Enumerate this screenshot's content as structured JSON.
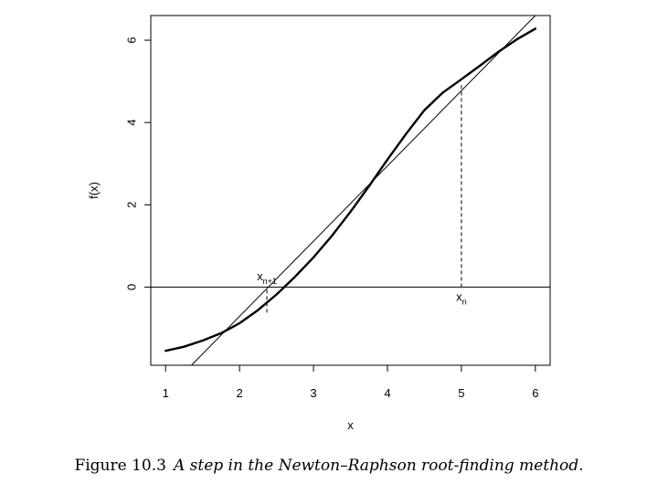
{
  "chart_data": {
    "type": "line",
    "title": "",
    "xlabel": "x",
    "ylabel": "f(x)",
    "xlim": [
      0.8,
      6.2
    ],
    "ylim": [
      -1.9,
      6.6
    ],
    "xticks": [
      1,
      2,
      3,
      4,
      5,
      6
    ],
    "yticks": [
      0,
      2,
      4,
      6
    ],
    "grid": false,
    "series": [
      {
        "style": "thick-curve",
        "x": [
          1.0,
          1.25,
          1.5,
          1.75,
          2.0,
          2.25,
          2.5,
          2.75,
          3.0,
          3.25,
          3.5,
          3.75,
          4.0,
          4.25,
          4.5,
          4.75,
          5.0,
          5.25,
          5.5,
          5.75,
          6.0
        ],
        "y": [
          -1.55,
          -1.45,
          -1.3,
          -1.12,
          -0.88,
          -0.56,
          -0.18,
          0.25,
          0.72,
          1.25,
          1.83,
          2.45,
          3.1,
          3.72,
          4.3,
          4.73,
          5.05,
          5.38,
          5.72,
          6.02,
          6.28
        ]
      },
      {
        "style": "thin-line",
        "x": [
          1.35,
          6.0
        ],
        "y": [
          -1.9,
          6.6
        ]
      }
    ],
    "hline": 0,
    "vlines": [
      {
        "x": 5.0,
        "y_from": 0,
        "y_to": 4.91,
        "style": "dashed"
      },
      {
        "x": 2.37,
        "y_from": -0.62,
        "y_to": 0,
        "style": "dashed"
      }
    ],
    "annotations": [
      {
        "text": "x",
        "sub": "n",
        "x": 5.0,
        "y": -0.25
      },
      {
        "text": "x",
        "sub": "n+1",
        "x": 2.37,
        "y": 0.25
      }
    ]
  },
  "caption": {
    "label": "Figure 10.3",
    "text": "A step in the Newton–Raphson root-finding method."
  }
}
